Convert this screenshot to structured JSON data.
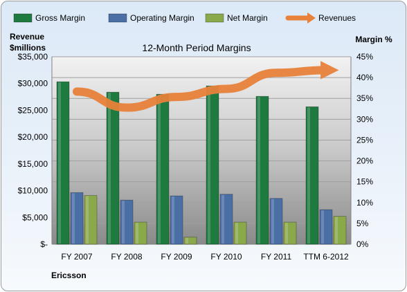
{
  "chart_data": {
    "type": "bar",
    "title": "12-Month Period Margins",
    "categories": [
      "FY 2007",
      "FY 2008",
      "FY 2009",
      "FY 2010",
      "FY 2011",
      "TTM 6-2012"
    ],
    "series": [
      {
        "name": "Gross Margin",
        "axis": "right",
        "color": "#1f7a3f",
        "values": [
          39.0,
          36.5,
          36.0,
          38.0,
          35.5,
          33.0
        ]
      },
      {
        "name": "Operating Margin",
        "axis": "right",
        "color": "#4a6fa5",
        "values": [
          12.4,
          10.6,
          11.6,
          12.0,
          11.0,
          8.3
        ]
      },
      {
        "name": "Net Margin",
        "axis": "right",
        "color": "#8aa94b",
        "values": [
          11.7,
          5.3,
          1.7,
          5.3,
          5.3,
          6.7
        ]
      }
    ],
    "line_series": {
      "name": "Revenues",
      "axis": "left",
      "color": "#e8823a",
      "style": "thick-arrow",
      "values": [
        28500,
        25500,
        27500,
        29000,
        32000,
        32500
      ]
    },
    "y_left": {
      "label": "Revenue\n$millions",
      "min": 0,
      "max": 35000,
      "step": 5000,
      "ticks": [
        "$-",
        "$5,000",
        "$10,000",
        "$15,000",
        "$20,000",
        "$25,000",
        "$30,000",
        "$35,000"
      ]
    },
    "y_right": {
      "label": "Margin %",
      "min": 0,
      "max": 45,
      "step": 5,
      "ticks": [
        "0%",
        "5%",
        "10%",
        "15%",
        "20%",
        "25%",
        "30%",
        "35%",
        "40%",
        "45%"
      ]
    },
    "legend_position": "top",
    "grid": true
  },
  "footer": {
    "company": "Ericsson"
  }
}
